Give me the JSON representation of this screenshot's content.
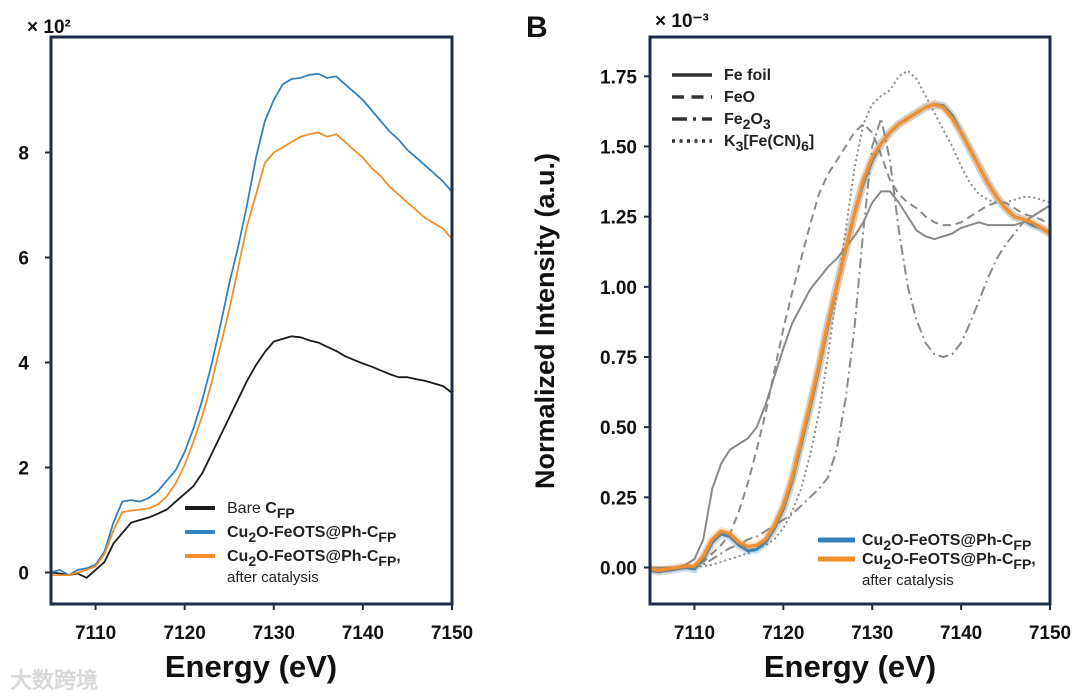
{
  "watermark": "大数跨境",
  "colors": {
    "blue": "#3581bd",
    "orange": "#f28e2b",
    "black": "#1a1a1a",
    "grey": "#8a8a8a",
    "frame": "#1e2c48"
  },
  "chart_data": [
    {
      "type": "line",
      "panel_label": "",
      "multiplier": "× 10²",
      "xlabel": "Energy (eV)",
      "ylabel": "",
      "xlim": [
        7105,
        7150
      ],
      "ylim": [
        -0.6,
        10.2
      ],
      "xticks": [
        "7110",
        "7120",
        "7130",
        "7140",
        "7150"
      ],
      "yticks": [
        "0",
        "2",
        "4",
        "6",
        "8"
      ],
      "legend_position": "bottom-right",
      "x": [
        7105,
        7106,
        7107,
        7108,
        7109,
        7110,
        7111,
        7112,
        7113,
        7114,
        7115,
        7116,
        7117,
        7118,
        7119,
        7120,
        7121,
        7122,
        7123,
        7124,
        7125,
        7126,
        7127,
        7128,
        7129,
        7130,
        7131,
        7132,
        7133,
        7134,
        7135,
        7136,
        7137,
        7138,
        7139,
        7140,
        7141,
        7142,
        7143,
        7144,
        7145,
        7146,
        7147,
        7148,
        7149,
        7150
      ],
      "series": [
        {
          "name": "Bare CFP",
          "label_parts": [
            [
              "Bare ",
              ""
            ],
            [
              "C",
              "b"
            ],
            [
              "FP",
              "sub"
            ]
          ],
          "color": "#1a1a1a",
          "dash": "",
          "values": [
            0,
            -0.02,
            -0.05,
            -0.02,
            -0.1,
            0.05,
            0.2,
            0.55,
            0.75,
            0.95,
            1.0,
            1.05,
            1.12,
            1.2,
            1.35,
            1.5,
            1.65,
            1.9,
            2.25,
            2.6,
            2.95,
            3.3,
            3.65,
            3.95,
            4.2,
            4.4,
            4.45,
            4.5,
            4.48,
            4.42,
            4.38,
            4.3,
            4.22,
            4.12,
            4.05,
            3.98,
            3.92,
            3.85,
            3.78,
            3.72,
            3.72,
            3.68,
            3.65,
            3.6,
            3.55,
            3.42
          ]
        },
        {
          "name": "Cu2O-FeOTS@Ph-CFP",
          "label_parts": [
            [
              "Cu",
              "b"
            ],
            [
              "2",
              "sub"
            ],
            [
              "O-FeOTS@Ph-C",
              "b"
            ],
            [
              "FP",
              "sub"
            ]
          ],
          "color": "#3581bd",
          "dash": "",
          "values": [
            0,
            0.05,
            -0.05,
            0.05,
            0.08,
            0.15,
            0.4,
            0.95,
            1.35,
            1.38,
            1.35,
            1.42,
            1.55,
            1.75,
            1.95,
            2.3,
            2.75,
            3.3,
            3.95,
            4.7,
            5.5,
            6.2,
            7.0,
            7.9,
            8.6,
            9.0,
            9.3,
            9.4,
            9.42,
            9.48,
            9.5,
            9.42,
            9.45,
            9.3,
            9.15,
            9.0,
            8.8,
            8.6,
            8.4,
            8.25,
            8.05,
            7.9,
            7.75,
            7.6,
            7.45,
            7.25
          ]
        },
        {
          "name": "Cu2O-FeOTS@Ph-CFP, after catalysis",
          "label_parts": [
            [
              "Cu",
              "b"
            ],
            [
              "2",
              "sub"
            ],
            [
              "O-FeOTS@Ph-C",
              "b"
            ],
            [
              "FP",
              "sub"
            ],
            [
              ",",
              "b"
            ]
          ],
          "label_line2": "after catalysis",
          "color": "#f28e2b",
          "dash": "",
          "values": [
            -0.05,
            -0.05,
            -0.05,
            0.0,
            0.05,
            0.12,
            0.35,
            0.8,
            1.15,
            1.18,
            1.2,
            1.22,
            1.3,
            1.45,
            1.7,
            2.05,
            2.5,
            3.0,
            3.6,
            4.3,
            5.0,
            5.8,
            6.6,
            7.2,
            7.8,
            8.0,
            8.1,
            8.2,
            8.3,
            8.35,
            8.38,
            8.3,
            8.35,
            8.2,
            8.05,
            7.9,
            7.7,
            7.55,
            7.35,
            7.2,
            7.05,
            6.9,
            6.75,
            6.65,
            6.55,
            6.35
          ]
        }
      ]
    },
    {
      "type": "line",
      "panel_label": "B",
      "multiplier": "× 10⁻³",
      "xlabel": "Energy (eV)",
      "ylabel": "Normalized Intensity (a.u.)",
      "xlim": [
        7105,
        7150
      ],
      "ylim": [
        -0.13,
        1.89
      ],
      "xticks": [
        "7110",
        "7120",
        "7130",
        "7140",
        "7150"
      ],
      "yticks": [
        "0.00",
        "0.25",
        "0.50",
        "0.75",
        "1.00",
        "1.25",
        "1.50",
        "1.75"
      ],
      "legend_position": "top-left and bottom-right",
      "x": [
        7105,
        7106,
        7107,
        7108,
        7109,
        7110,
        7111,
        7112,
        7113,
        7114,
        7115,
        7116,
        7117,
        7118,
        7119,
        7120,
        7121,
        7122,
        7123,
        7124,
        7125,
        7126,
        7127,
        7128,
        7129,
        7130,
        7131,
        7132,
        7133,
        7134,
        7135,
        7136,
        7137,
        7138,
        7139,
        7140,
        7141,
        7142,
        7143,
        7144,
        7145,
        7146,
        7147,
        7148,
        7149,
        7150
      ],
      "series": [
        {
          "name": "Fe foil",
          "label_parts": [
            [
              "Fe foil",
              "b"
            ]
          ],
          "color": "#8a8a8a",
          "dash": "",
          "values": [
            0,
            0,
            0,
            0,
            0.01,
            0.03,
            0.1,
            0.28,
            0.37,
            0.42,
            0.44,
            0.46,
            0.5,
            0.58,
            0.68,
            0.78,
            0.87,
            0.93,
            0.99,
            1.03,
            1.07,
            1.1,
            1.14,
            1.18,
            1.23,
            1.3,
            1.34,
            1.34,
            1.3,
            1.25,
            1.2,
            1.18,
            1.17,
            1.18,
            1.19,
            1.21,
            1.22,
            1.23,
            1.22,
            1.22,
            1.22,
            1.22,
            1.23,
            1.25,
            1.27,
            1.29
          ]
        },
        {
          "name": "FeO",
          "label_parts": [
            [
              "FeO",
              "b"
            ]
          ],
          "color": "#8a8a8a",
          "dash": "8,5",
          "values": [
            0,
            0,
            0,
            0,
            0,
            0,
            0.02,
            0.05,
            0.08,
            0.12,
            0.2,
            0.3,
            0.42,
            0.55,
            0.7,
            0.85,
            0.98,
            1.1,
            1.22,
            1.33,
            1.4,
            1.45,
            1.5,
            1.55,
            1.58,
            1.55,
            1.47,
            1.38,
            1.33,
            1.3,
            1.28,
            1.25,
            1.23,
            1.22,
            1.22,
            1.23,
            1.25,
            1.27,
            1.29,
            1.3,
            1.3,
            1.28,
            1.26,
            1.25,
            1.24,
            1.22
          ]
        },
        {
          "name": "Fe2O3",
          "label_parts": [
            [
              "Fe",
              "b"
            ],
            [
              "2",
              "sub"
            ],
            [
              "O",
              "b"
            ],
            [
              "3",
              "sub"
            ]
          ],
          "color": "#8a8a8a",
          "dash": "10,4,2,4",
          "values": [
            0,
            0,
            0,
            0,
            0,
            0,
            0.01,
            0.03,
            0.05,
            0.07,
            0.08,
            0.1,
            0.11,
            0.13,
            0.15,
            0.17,
            0.19,
            0.22,
            0.25,
            0.28,
            0.32,
            0.42,
            0.6,
            0.85,
            1.2,
            1.5,
            1.6,
            1.45,
            1.2,
            1.0,
            0.88,
            0.8,
            0.76,
            0.75,
            0.76,
            0.8,
            0.87,
            0.95,
            1.03,
            1.1,
            1.15,
            1.19,
            1.23,
            1.25,
            1.27,
            1.29
          ]
        },
        {
          "name": "K3[Fe(CN)6]",
          "label_parts": [
            [
              "K",
              "b"
            ],
            [
              "3",
              "sub"
            ],
            [
              "[Fe(CN)",
              "b"
            ],
            [
              "6",
              "sub"
            ],
            [
              "]",
              "b"
            ]
          ],
          "color": "#8a8a8a",
          "dash": "2,3",
          "values": [
            0,
            0,
            0,
            0,
            0,
            0,
            0.005,
            0.01,
            0.02,
            0.03,
            0.04,
            0.05,
            0.065,
            0.08,
            0.1,
            0.14,
            0.2,
            0.28,
            0.4,
            0.55,
            0.75,
            0.98,
            1.2,
            1.42,
            1.58,
            1.65,
            1.68,
            1.7,
            1.75,
            1.77,
            1.74,
            1.68,
            1.62,
            1.56,
            1.5,
            1.43,
            1.37,
            1.33,
            1.31,
            1.3,
            1.3,
            1.31,
            1.32,
            1.32,
            1.31,
            1.3
          ]
        },
        {
          "name": "Cu2O-FeOTS@Ph-CFP",
          "label_parts": [
            [
              "Cu",
              "b"
            ],
            [
              "2",
              "sub"
            ],
            [
              "O-FeOTS@Ph-C",
              "b"
            ],
            [
              "FP",
              "sub"
            ]
          ],
          "color": "#3581bd",
          "dash": "",
          "values": [
            -0.01,
            -0.015,
            -0.01,
            -0.005,
            0,
            -0.005,
            0.03,
            0.09,
            0.12,
            0.11,
            0.08,
            0.06,
            0.065,
            0.09,
            0.14,
            0.21,
            0.31,
            0.44,
            0.57,
            0.71,
            0.86,
            1.0,
            1.13,
            1.26,
            1.37,
            1.45,
            1.51,
            1.55,
            1.58,
            1.6,
            1.62,
            1.64,
            1.65,
            1.645,
            1.61,
            1.55,
            1.49,
            1.43,
            1.37,
            1.32,
            1.28,
            1.25,
            1.24,
            1.22,
            1.21,
            1.19
          ]
        },
        {
          "name": "Cu2O-FeOTS@Ph-CFP, after catalysis",
          "label_parts": [
            [
              "Cu",
              "b"
            ],
            [
              "2",
              "sub"
            ],
            [
              "O-FeOTS@Ph-C",
              "b"
            ],
            [
              "FP",
              "sub"
            ],
            [
              ",",
              "b"
            ]
          ],
          "label_line2": "after catalysis",
          "color": "#f28e2b",
          "dash": "",
          "values": [
            -0.005,
            -0.01,
            -0.005,
            0,
            0.005,
            0.005,
            0.04,
            0.1,
            0.13,
            0.12,
            0.09,
            0.075,
            0.08,
            0.1,
            0.15,
            0.22,
            0.32,
            0.45,
            0.58,
            0.72,
            0.87,
            1.0,
            1.13,
            1.26,
            1.38,
            1.46,
            1.51,
            1.55,
            1.58,
            1.6,
            1.62,
            1.64,
            1.65,
            1.64,
            1.6,
            1.55,
            1.49,
            1.43,
            1.37,
            1.32,
            1.28,
            1.25,
            1.24,
            1.23,
            1.21,
            1.19
          ]
        }
      ]
    }
  ]
}
